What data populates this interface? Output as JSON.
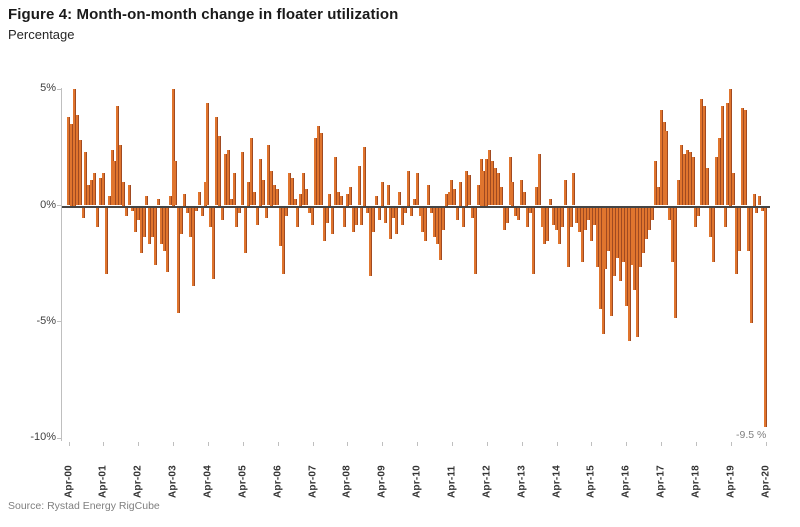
{
  "header": {
    "title": "Figure 4: Month-on-month change in floater utilization",
    "subtitle": "Percentage"
  },
  "footer": {
    "source": "Source: Rystad Energy RigCube"
  },
  "chart_data": {
    "type": "bar",
    "title": "Figure 4: Month-on-month change in floater utilization",
    "ylabel": "Percentage",
    "xlabel": "",
    "ylim": [
      -10,
      5
    ],
    "grid": false,
    "legend": "none",
    "bar_color": "#e0752e",
    "bar_edge_color": "#a04a21",
    "frequency": "monthly",
    "x_start": "Apr-00",
    "x_end": "Apr-20",
    "x_tick_labels": [
      "Apr-00",
      "Apr-01",
      "Apr-02",
      "Apr-03",
      "Apr-04",
      "Apr-05",
      "Apr-06",
      "Apr-07",
      "Apr-08",
      "Apr-09",
      "Apr-10",
      "Apr-11",
      "Apr-12",
      "Apr-13",
      "Apr-14",
      "Apr-15",
      "Apr-16",
      "Apr-17",
      "Apr-18",
      "Apr-19",
      "Apr-20"
    ],
    "y_ticks": [
      {
        "label": "5%",
        "value": 5
      },
      {
        "label": "0%",
        "value": 0
      },
      {
        "label": "-5%",
        "value": -5
      },
      {
        "label": "-10%",
        "value": -10
      }
    ],
    "annotation": {
      "text": "-9.5 %",
      "month": "Apr-20",
      "value": -9.5
    },
    "values": [
      3.8,
      3.5,
      5.0,
      3.9,
      2.8,
      -0.5,
      2.3,
      0.9,
      1.1,
      1.4,
      -0.9,
      1.2,
      1.4,
      -2.9,
      0.4,
      2.4,
      1.9,
      4.3,
      2.6,
      1.0,
      -0.4,
      0.9,
      -0.2,
      -1.1,
      -0.6,
      -2.0,
      -1.3,
      0.4,
      -1.6,
      -1.3,
      -2.5,
      0.3,
      -1.6,
      -1.9,
      -2.8,
      0.4,
      5.0,
      1.9,
      -4.6,
      -1.2,
      0.5,
      -0.3,
      -1.3,
      -3.4,
      -0.2,
      0.6,
      -0.4,
      1.0,
      4.4,
      -0.9,
      -3.1,
      3.8,
      3.0,
      -0.6,
      2.2,
      2.4,
      0.3,
      1.4,
      -0.9,
      -0.3,
      2.3,
      -2.0,
      1.0,
      2.9,
      0.6,
      -0.8,
      2.0,
      1.1,
      -0.5,
      2.6,
      1.5,
      0.9,
      0.7,
      -1.7,
      -2.9,
      -0.4,
      1.4,
      1.2,
      0.3,
      -0.9,
      0.5,
      1.4,
      0.7,
      -0.3,
      -0.8,
      2.9,
      3.4,
      3.1,
      -1.5,
      -0.7,
      0.5,
      -1.2,
      2.1,
      0.6,
      0.4,
      -0.9,
      0.5,
      0.8,
      -1.1,
      -0.8,
      1.7,
      -0.8,
      2.5,
      -0.3,
      -3.0,
      -1.1,
      0.4,
      -0.6,
      1.0,
      -0.7,
      0.9,
      -1.4,
      -0.5,
      -1.2,
      0.6,
      -0.8,
      -0.3,
      1.5,
      -0.4,
      0.3,
      1.4,
      -0.4,
      -1.1,
      -1.5,
      0.9,
      -0.3,
      -1.3,
      -1.6,
      -2.3,
      -1.0,
      0.5,
      0.6,
      1.1,
      0.7,
      -0.6,
      1.0,
      -0.9,
      1.5,
      1.3,
      -0.5,
      -2.9,
      0.9,
      2.0,
      1.5,
      2.0,
      2.4,
      1.9,
      1.6,
      1.4,
      0.8,
      -1.0,
      -0.7,
      2.1,
      1.0,
      -0.4,
      -0.6,
      1.1,
      0.6,
      -0.9,
      -0.3,
      -2.9,
      0.8,
      2.2,
      -0.9,
      -1.6,
      -1.5,
      0.3,
      -0.8,
      -1.0,
      -1.6,
      -0.9,
      1.1,
      -2.6,
      -0.9,
      1.4,
      -0.7,
      -1.1,
      -2.4,
      -1.0,
      -0.6,
      -1.5,
      -0.8,
      -2.6,
      -4.4,
      -5.5,
      -2.7,
      -1.9,
      -4.7,
      -3.0,
      -2.2,
      -3.2,
      -2.4,
      -4.3,
      -5.8,
      -2.5,
      -3.6,
      -5.6,
      -2.6,
      -2.0,
      -1.4,
      -1.0,
      -0.6,
      1.9,
      0.8,
      4.1,
      3.6,
      3.2,
      -0.6,
      -2.4,
      -4.8,
      1.1,
      2.6,
      2.2,
      2.4,
      2.3,
      2.1,
      -0.9,
      -0.4,
      4.6,
      4.3,
      1.6,
      -1.3,
      -2.4,
      2.1,
      2.9,
      4.3,
      -0.9,
      4.4,
      5.0,
      1.4,
      -2.9,
      -1.9,
      4.2,
      4.1,
      -1.9,
      -5.0,
      0.5,
      -0.3,
      0.4,
      -0.2,
      -9.5
    ]
  }
}
